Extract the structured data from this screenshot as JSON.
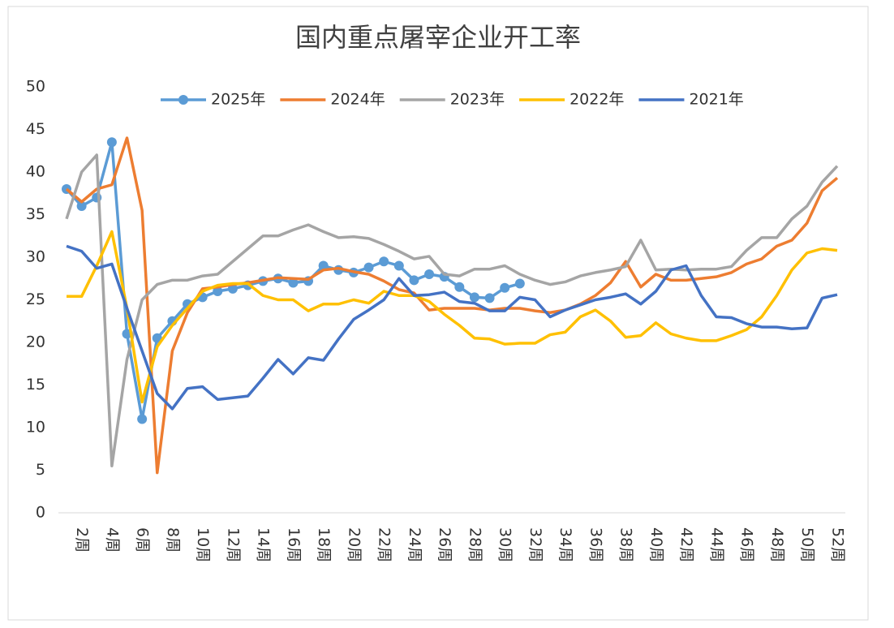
{
  "chart_data": {
    "type": "line",
    "title": "国内重点屠宰企业开工率",
    "categories": [
      null,
      "2周",
      null,
      "4周",
      null,
      "6周",
      null,
      "8周",
      null,
      "10周",
      null,
      "12周",
      null,
      "14周",
      null,
      "16周",
      null,
      "18周",
      null,
      "20周",
      null,
      "22周",
      null,
      "24周",
      null,
      "26周",
      null,
      "28周",
      null,
      "30周",
      null,
      "32周",
      null,
      "34周",
      null,
      "36周",
      null,
      "38周",
      null,
      "40周",
      null,
      "42周",
      null,
      "44周",
      null,
      "46周",
      null,
      "48周",
      null,
      "50周",
      null,
      "52周"
    ],
    "series": [
      {
        "name": "2025年",
        "color": "#5b9bd5",
        "marker": true,
        "values": [
          38,
          36,
          37,
          43.5,
          21,
          11,
          20.5,
          22.5,
          24.5,
          25.3,
          26,
          26.3,
          26.7,
          27.2,
          27.5,
          27,
          27.2,
          29,
          28.5,
          28.2,
          28.8,
          29.5,
          29,
          27.3,
          28,
          27.7,
          26.5,
          25.3,
          25.2,
          26.4,
          26.9,
          null,
          null,
          null,
          null,
          null,
          null,
          null,
          null,
          null,
          null,
          null,
          null,
          null,
          null,
          null,
          null,
          null,
          null,
          null,
          null,
          null
        ]
      },
      {
        "name": "2024年",
        "color": "#ed7d31",
        "values": [
          38,
          36.5,
          38,
          38.5,
          44,
          35.5,
          4.7,
          19,
          23.5,
          26.3,
          26.5,
          26.8,
          27,
          27.3,
          27.6,
          27.5,
          27.4,
          28.5,
          28.7,
          28.3,
          28,
          27.2,
          26.2,
          25.8,
          23.8,
          24,
          24,
          24,
          23.8,
          24,
          24,
          23.7,
          23.5,
          23.8,
          24.5,
          25.5,
          27,
          29.5,
          26.5,
          28,
          27.3,
          27.3,
          27.5,
          27.7,
          28.2,
          29.2,
          29.8,
          31.3,
          32,
          34,
          37.8,
          39.3
        ]
      },
      {
        "name": "2023年",
        "color": "#a5a5a5",
        "values": [
          34.5,
          40,
          42,
          5.5,
          18,
          25,
          26.8,
          27.3,
          27.3,
          27.8,
          28,
          29.5,
          31,
          32.5,
          32.5,
          33.2,
          33.8,
          33,
          32.3,
          32.4,
          32.2,
          31.5,
          30.7,
          29.8,
          30.1,
          28,
          27.8,
          28.6,
          28.6,
          29,
          28,
          27.3,
          26.8,
          27.1,
          27.8,
          28.2,
          28.5,
          28.9,
          32,
          28.5,
          28.6,
          28.5,
          28.6,
          28.6,
          28.9,
          30.8,
          32.3,
          32.3,
          34.5,
          36,
          38.8,
          40.7
        ]
      },
      {
        "name": "2022年",
        "color": "#ffc000",
        "values": [
          25.4,
          25.4,
          29,
          33,
          24,
          13,
          19.5,
          22,
          24,
          26,
          26.7,
          26.9,
          26.9,
          25.5,
          25,
          25,
          23.7,
          24.5,
          24.5,
          25,
          24.6,
          26,
          25.5,
          25.5,
          24.8,
          23.3,
          22,
          20.5,
          20.4,
          19.8,
          19.9,
          19.9,
          20.9,
          21.2,
          23,
          23.8,
          22.5,
          20.6,
          20.8,
          22.3,
          21,
          20.5,
          20.2,
          20.2,
          20.8,
          21.5,
          23,
          25.5,
          28.5,
          30.5,
          31,
          30.8
        ]
      },
      {
        "name": "2021年",
        "color": "#4472c4",
        "values": [
          31.3,
          30.7,
          28.7,
          29.2,
          24,
          19,
          14,
          12.2,
          14.6,
          14.8,
          13.3,
          13.5,
          13.7,
          15.8,
          18,
          16.3,
          18.2,
          17.9,
          20.4,
          22.7,
          23.8,
          25,
          27.5,
          25.5,
          25.6,
          25.9,
          24.8,
          24.6,
          23.7,
          23.7,
          25.3,
          25,
          23,
          23.8,
          24.4,
          25,
          25.3,
          25.7,
          24.5,
          26,
          28.5,
          29,
          25.5,
          23,
          22.9,
          22.2,
          21.8,
          21.8,
          21.6,
          21.7,
          25.2,
          25.6
        ]
      }
    ],
    "ylim": [
      0,
      50
    ],
    "yticks": [
      0,
      5,
      10,
      15,
      20,
      25,
      30,
      35,
      40,
      45,
      50
    ],
    "legend": "top"
  }
}
